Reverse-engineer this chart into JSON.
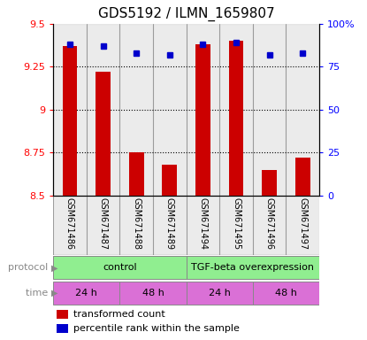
{
  "title": "GDS5192 / ILMN_1659807",
  "samples": [
    "GSM671486",
    "GSM671487",
    "GSM671488",
    "GSM671489",
    "GSM671494",
    "GSM671495",
    "GSM671496",
    "GSM671497"
  ],
  "transformed_counts": [
    9.37,
    9.22,
    8.75,
    8.68,
    9.38,
    9.4,
    8.65,
    8.72
  ],
  "percentile_ranks": [
    88,
    87,
    83,
    82,
    88,
    89,
    82,
    83
  ],
  "ylim_left": [
    8.5,
    9.5
  ],
  "ylim_right": [
    0,
    100
  ],
  "yticks_left": [
    8.5,
    8.75,
    9.0,
    9.25,
    9.5
  ],
  "yticks_right": [
    0,
    25,
    50,
    75,
    100
  ],
  "ytick_labels_left": [
    "8.5",
    "8.75",
    "9",
    "9.25",
    "9.5"
  ],
  "ytick_labels_right": [
    "0",
    "25",
    "50",
    "75",
    "100%"
  ],
  "bar_color": "#cc0000",
  "dot_color": "#0000cc",
  "col_bg_color": "#d3d3d3",
  "protocol_green": "#90ee90",
  "time_magenta": "#da70d6",
  "grid_dotted_color": "black",
  "label_color_left": "red",
  "label_color_right": "blue",
  "title_fontsize": 11,
  "tick_fontsize": 8,
  "sample_fontsize": 7,
  "annotation_fontsize": 8
}
